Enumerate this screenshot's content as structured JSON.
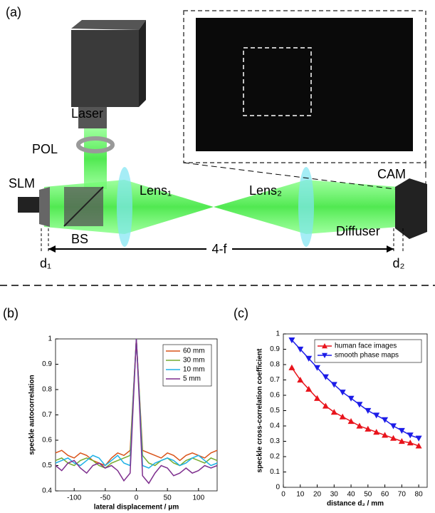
{
  "panel_a": {
    "label": "(a)",
    "laser": "Laser",
    "pol": "POL",
    "slm": "SLM",
    "bs": "BS",
    "lens1": "Lens₁",
    "lens2": "Lens₂",
    "cam": "CAM",
    "diffuser": "Diffuser",
    "four_f": "4-f",
    "d1": "d₁",
    "d2": "d₂"
  },
  "chart_data": [
    {
      "type": "line",
      "label": "(b)",
      "xlabel": "lateral displacement / μm",
      "ylabel": "speckle autocorrelation",
      "x": [
        -130,
        -120,
        -110,
        -100,
        -90,
        -80,
        -70,
        -60,
        -50,
        -40,
        -30,
        -20,
        -10,
        -5,
        0,
        5,
        10,
        20,
        30,
        40,
        50,
        60,
        70,
        80,
        90,
        100,
        110,
        120,
        130
      ],
      "series": [
        {
          "name": "60 mm",
          "color": "#d95319",
          "values": [
            0.55,
            0.56,
            0.54,
            0.53,
            0.55,
            0.54,
            0.52,
            0.51,
            0.5,
            0.53,
            0.55,
            0.54,
            0.56,
            0.78,
            1,
            0.78,
            0.56,
            0.55,
            0.54,
            0.53,
            0.55,
            0.54,
            0.52,
            0.54,
            0.55,
            0.54,
            0.53,
            0.55,
            0.56
          ]
        },
        {
          "name": "30 mm",
          "color": "#77ac30",
          "values": [
            0.52,
            0.53,
            0.51,
            0.5,
            0.52,
            0.53,
            0.52,
            0.5,
            0.49,
            0.51,
            0.52,
            0.53,
            0.54,
            0.77,
            1,
            0.77,
            0.54,
            0.51,
            0.5,
            0.52,
            0.53,
            0.51,
            0.5,
            0.52,
            0.53,
            0.52,
            0.51,
            0.53,
            0.52
          ]
        },
        {
          "name": "10 mm",
          "color": "#1fb1e6",
          "values": [
            0.51,
            0.52,
            0.53,
            0.51,
            0.5,
            0.52,
            0.54,
            0.53,
            0.5,
            0.52,
            0.54,
            0.51,
            0.5,
            0.76,
            1,
            0.76,
            0.5,
            0.49,
            0.51,
            0.52,
            0.53,
            0.52,
            0.5,
            0.51,
            0.53,
            0.54,
            0.52,
            0.5,
            0.51
          ]
        },
        {
          "name": "5 mm",
          "color": "#7e2f8e",
          "values": [
            0.5,
            0.48,
            0.51,
            0.52,
            0.49,
            0.47,
            0.5,
            0.51,
            0.49,
            0.5,
            0.48,
            0.44,
            0.47,
            0.74,
            1,
            0.74,
            0.46,
            0.43,
            0.47,
            0.5,
            0.49,
            0.46,
            0.47,
            0.49,
            0.47,
            0.48,
            0.5,
            0.49,
            0.5
          ]
        }
      ],
      "xlim": [
        -130,
        130
      ],
      "ylim": [
        0.4,
        1
      ],
      "xticks": [
        -100,
        -50,
        0,
        50,
        100
      ],
      "yticks": [
        0.4,
        0.5,
        0.6,
        0.7,
        0.8,
        0.9,
        1
      ],
      "legend": "upper right"
    },
    {
      "type": "line",
      "label": "(c)",
      "xlabel": "distance d₂ / mm",
      "ylabel": "speckle cross-correlation coefficient",
      "x": [
        5,
        10,
        15,
        20,
        25,
        30,
        35,
        40,
        45,
        50,
        55,
        60,
        65,
        70,
        75,
        80
      ],
      "series": [
        {
          "name": "human face images",
          "color": "#e8141c",
          "marker": "up",
          "values": [
            0.78,
            0.7,
            0.64,
            0.58,
            0.53,
            0.49,
            0.46,
            0.43,
            0.4,
            0.38,
            0.36,
            0.34,
            0.32,
            0.3,
            0.29,
            0.27
          ]
        },
        {
          "name": "smooth phase maps",
          "color": "#1c1ce8",
          "marker": "down",
          "values": [
            0.96,
            0.9,
            0.84,
            0.78,
            0.72,
            0.67,
            0.62,
            0.58,
            0.54,
            0.5,
            0.47,
            0.44,
            0.4,
            0.37,
            0.34,
            0.32
          ]
        }
      ],
      "xlim": [
        0,
        85
      ],
      "ylim": [
        0,
        1
      ],
      "xticks": [
        0,
        10,
        20,
        30,
        40,
        50,
        60,
        70,
        80
      ],
      "yticks": [
        0,
        0.1,
        0.2,
        0.3,
        0.4,
        0.5,
        0.6,
        0.7,
        0.8,
        0.9,
        1
      ],
      "legend": "upper right"
    }
  ]
}
